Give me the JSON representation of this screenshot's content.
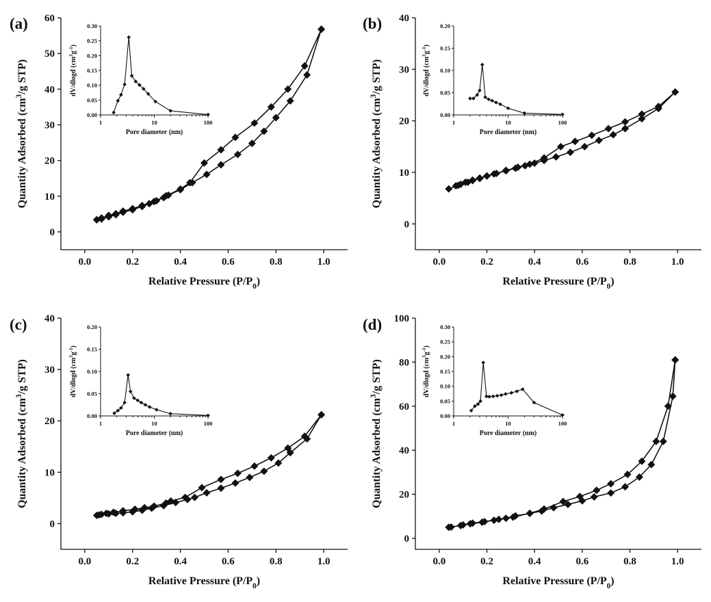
{
  "figure": {
    "title": ""
  },
  "chart_data": [
    {
      "panel": "(a)",
      "type": "line",
      "xlabel": "Relative Pressure (P/P0)",
      "ylabel": "Quantity Adsorbed (cm3/g STP)",
      "xlim": [
        -0.1,
        1.1
      ],
      "ylim": [
        -5,
        60
      ],
      "xticks": [
        0.0,
        0.2,
        0.4,
        0.6,
        0.8,
        1.0
      ],
      "yticks": [
        0,
        10,
        20,
        30,
        40,
        50,
        60
      ],
      "series": [
        {
          "x": [
            0.05,
            0.07,
            0.1,
            0.13,
            0.16,
            0.2,
            0.24,
            0.27,
            0.3,
            0.33,
            0.35,
            0.4,
            0.45,
            0.51,
            0.57,
            0.64,
            0.7,
            0.75,
            0.8,
            0.86,
            0.93,
            0.99
          ],
          "y": [
            3.4,
            3.6,
            4.2,
            4.8,
            5.5,
            6.2,
            7.1,
            7.9,
            8.7,
            9.6,
            10.3,
            11.8,
            13.8,
            16.1,
            18.8,
            21.7,
            24.8,
            28.2,
            32.0,
            36.7,
            44.0,
            56.8
          ]
        },
        {
          "x": [
            0.99,
            0.92,
            0.85,
            0.78,
            0.71,
            0.63,
            0.57,
            0.5,
            0.44,
            0.4,
            0.34,
            0.29,
            0.24,
            0.2,
            0.16,
            0.13,
            0.1,
            0.07,
            0.05
          ],
          "y": [
            56.8,
            46.5,
            40.0,
            35.0,
            30.5,
            26.5,
            23.0,
            19.3,
            13.8,
            12.0,
            10.1,
            8.5,
            7.4,
            6.5,
            5.8,
            5.1,
            4.6,
            3.9,
            3.4
          ]
        }
      ],
      "inset": {
        "type": "line",
        "xlabel": "Pore diameter (nm)",
        "ylabel": "dV/dlogd (cm3g-1)",
        "xscale": "log",
        "xlim": [
          1,
          100
        ],
        "ylim": [
          0,
          0.3
        ],
        "yticks": [
          0.0,
          0.05,
          0.1,
          0.15,
          0.2,
          0.25,
          0.3
        ],
        "yticklabels": [
          "0.00",
          "0.05",
          "0.10",
          "0.15",
          "0.20",
          "0.25",
          "0.30"
        ],
        "xticks": [
          1,
          10,
          100
        ],
        "x": [
          1.75,
          2.1,
          2.4,
          2.8,
          3.35,
          3.8,
          4.5,
          5.3,
          6.3,
          7.7,
          10.5,
          20,
          100
        ],
        "y": [
          0.008,
          0.048,
          0.068,
          0.103,
          0.262,
          0.132,
          0.113,
          0.101,
          0.088,
          0.071,
          0.045,
          0.014,
          0.001
        ]
      }
    },
    {
      "panel": "(b)",
      "type": "line",
      "xlabel": "Relative Pressure (P/P0)",
      "ylabel": "Quantity Adsorbed (cm3/g STP)",
      "xlim": [
        -0.1,
        1.1
      ],
      "ylim": [
        -5,
        40
      ],
      "xticks": [
        0.0,
        0.2,
        0.4,
        0.6,
        0.8,
        1.0
      ],
      "yticks": [
        0,
        10,
        20,
        30,
        40
      ],
      "series": [
        {
          "x": [
            0.04,
            0.08,
            0.11,
            0.14,
            0.17,
            0.2,
            0.23,
            0.28,
            0.32,
            0.36,
            0.4,
            0.44,
            0.49,
            0.55,
            0.61,
            0.67,
            0.73,
            0.78,
            0.85,
            0.92,
            0.99
          ],
          "y": [
            6.8,
            7.5,
            8.1,
            8.5,
            8.9,
            9.3,
            9.7,
            10.3,
            10.8,
            11.3,
            11.8,
            12.3,
            13.0,
            13.9,
            15.0,
            16.2,
            17.3,
            18.5,
            20.4,
            22.4,
            25.6
          ]
        },
        {
          "x": [
            0.99,
            0.92,
            0.85,
            0.78,
            0.71,
            0.64,
            0.57,
            0.51,
            0.44,
            0.38,
            0.33,
            0.28,
            0.24,
            0.2,
            0.17,
            0.14,
            0.12,
            0.09,
            0.07
          ],
          "y": [
            25.6,
            22.8,
            21.3,
            19.8,
            18.5,
            17.2,
            16.0,
            15.0,
            12.8,
            11.6,
            11.0,
            10.4,
            9.8,
            9.3,
            8.8,
            8.4,
            8.1,
            7.7,
            7.4
          ]
        }
      ],
      "inset": {
        "type": "line",
        "xlabel": "Pore diameter (nm)",
        "ylabel": "dV/dlogd (cm3g-1)",
        "xscale": "log",
        "xlim": [
          1,
          100
        ],
        "ylim": [
          0,
          0.2
        ],
        "yticks": [
          0.0,
          0.05,
          0.1,
          0.15,
          0.2
        ],
        "yticklabels": [
          "0.00",
          "0.05",
          "0.10",
          "0.15",
          "0.20"
        ],
        "xticks": [
          1,
          10,
          100
        ],
        "x": [
          2.0,
          2.3,
          2.7,
          3.0,
          3.35,
          3.8,
          4.4,
          5.1,
          6.0,
          7.2,
          10.0,
          20,
          100
        ],
        "y": [
          0.037,
          0.037,
          0.045,
          0.055,
          0.113,
          0.04,
          0.035,
          0.032,
          0.028,
          0.024,
          0.015,
          0.004,
          0.001
        ]
      }
    },
    {
      "panel": "(c)",
      "type": "line",
      "xlabel": "Relative Pressure (P/P0)",
      "ylabel": "Quantity Adsorbed (cm3/g STP)",
      "xlim": [
        -0.1,
        1.1
      ],
      "ylim": [
        -5,
        40
      ],
      "xticks": [
        0.0,
        0.2,
        0.4,
        0.6,
        0.8,
        1.0
      ],
      "yticks": [
        0,
        10,
        20,
        30,
        40
      ],
      "series": [
        {
          "x": [
            0.05,
            0.07,
            0.1,
            0.13,
            0.16,
            0.2,
            0.24,
            0.28,
            0.33,
            0.38,
            0.43,
            0.46,
            0.51,
            0.57,
            0.63,
            0.69,
            0.75,
            0.81,
            0.86,
            0.93,
            0.99
          ],
          "y": [
            1.6,
            1.8,
            1.9,
            2.0,
            2.1,
            2.3,
            2.6,
            3.0,
            3.5,
            4.1,
            4.7,
            5.1,
            6.0,
            6.9,
            7.9,
            9.0,
            10.2,
            11.8,
            13.8,
            16.5,
            21.2
          ]
        },
        {
          "x": [
            0.99,
            0.92,
            0.85,
            0.78,
            0.71,
            0.64,
            0.57,
            0.49,
            0.42,
            0.36,
            0.34,
            0.29,
            0.25,
            0.21,
            0.16,
            0.12,
            0.09,
            0.06
          ],
          "y": [
            21.2,
            17.0,
            14.7,
            12.8,
            11.2,
            9.8,
            8.6,
            7.0,
            5.1,
            4.4,
            4.0,
            3.4,
            3.1,
            2.8,
            2.5,
            2.2,
            2.0,
            1.7
          ]
        }
      ],
      "inset": {
        "type": "line",
        "xlabel": "Pore diameter (nm)",
        "ylabel": "dV/dlogd (cm3g-1)",
        "xscale": "log",
        "xlim": [
          1,
          100
        ],
        "ylim": [
          0,
          0.2
        ],
        "yticks": [
          0.0,
          0.05,
          0.1,
          0.15,
          0.2
        ],
        "yticklabels": [
          "0.00",
          "0.05",
          "0.10",
          "0.15",
          "0.20"
        ],
        "xticks": [
          1,
          10,
          100
        ],
        "x": [
          1.8,
          2.1,
          2.4,
          2.8,
          3.25,
          3.6,
          4.2,
          4.9,
          5.7,
          6.8,
          8.2,
          11.0,
          20,
          100
        ],
        "y": [
          0.006,
          0.012,
          0.018,
          0.03,
          0.092,
          0.055,
          0.04,
          0.035,
          0.03,
          0.025,
          0.02,
          0.014,
          0.005,
          0.001
        ]
      }
    },
    {
      "panel": "(d)",
      "type": "line",
      "xlabel": "Relative Pressure (P/P0)",
      "ylabel": "Quantity Adsorbed (cm3/g STP)",
      "xlim": [
        -0.1,
        1.1
      ],
      "ylim": [
        -5,
        100
      ],
      "xticks": [
        0.0,
        0.2,
        0.4,
        0.6,
        0.8,
        1.0
      ],
      "yticks": [
        0,
        20,
        40,
        60,
        80,
        100
      ],
      "series": [
        {
          "x": [
            0.04,
            0.09,
            0.13,
            0.18,
            0.23,
            0.28,
            0.32,
            0.38,
            0.43,
            0.48,
            0.54,
            0.6,
            0.65,
            0.72,
            0.78,
            0.84,
            0.89,
            0.94,
            0.98,
            0.99
          ],
          "y": [
            5.0,
            5.8,
            6.6,
            7.3,
            8.2,
            9.1,
            10.2,
            11.3,
            12.4,
            13.9,
            15.4,
            17.0,
            18.8,
            20.6,
            23.4,
            27.8,
            33.5,
            44.0,
            64.5,
            81.0
          ]
        },
        {
          "x": [
            0.99,
            0.96,
            0.91,
            0.85,
            0.79,
            0.72,
            0.66,
            0.59,
            0.52,
            0.44,
            0.38,
            0.31,
            0.25,
            0.19,
            0.14,
            0.1,
            0.05
          ],
          "y": [
            81.0,
            60.0,
            44.0,
            35.0,
            29.0,
            24.8,
            21.8,
            19.0,
            16.7,
            13.3,
            11.4,
            9.6,
            8.6,
            7.6,
            6.9,
            6.1,
            5.1
          ]
        }
      ],
      "inset": {
        "type": "line",
        "xlabel": "Pore diameter (nm)",
        "ylabel": "dV/dlogd (cm3g-1)",
        "xscale": "log",
        "xlim": [
          1,
          100
        ],
        "ylim": [
          0,
          0.3
        ],
        "yticks": [
          0.0,
          0.05,
          0.1,
          0.15,
          0.2,
          0.25,
          0.3
        ],
        "yticklabels": [
          "0.00",
          "0.05",
          "0.10",
          "0.15",
          "0.20",
          "0.25",
          "0.30"
        ],
        "xticks": [
          1,
          10,
          100
        ],
        "x": [
          2.1,
          2.45,
          2.8,
          3.1,
          3.5,
          4.0,
          4.5,
          5.3,
          6.3,
          7.5,
          9.0,
          11.5,
          14.5,
          18.5,
          30,
          100
        ],
        "y": [
          0.018,
          0.033,
          0.04,
          0.05,
          0.18,
          0.066,
          0.065,
          0.066,
          0.068,
          0.07,
          0.074,
          0.078,
          0.083,
          0.09,
          0.045,
          0.003
        ]
      }
    }
  ]
}
